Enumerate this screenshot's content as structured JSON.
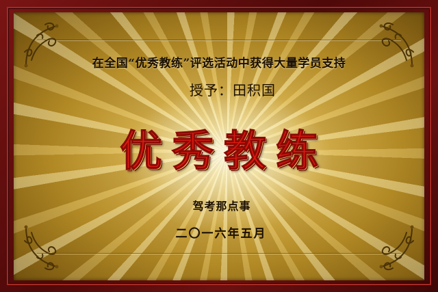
{
  "plaque": {
    "headline": "在全国“优秀教练”评选活动中获得大量学员支持",
    "award_line": "授予：田积国",
    "title": "优秀教练",
    "issuer": "驾考那点事",
    "date": "二〇一六年五月"
  },
  "colors": {
    "frame": "#5a0d0d",
    "gold_light": "#f5de8a",
    "gold_dark": "#8a6615",
    "title_red": "#e01a10",
    "text_dark": "#1a0f02"
  },
  "ornaments": {
    "corner_icon": "scroll-flourish-icon"
  }
}
